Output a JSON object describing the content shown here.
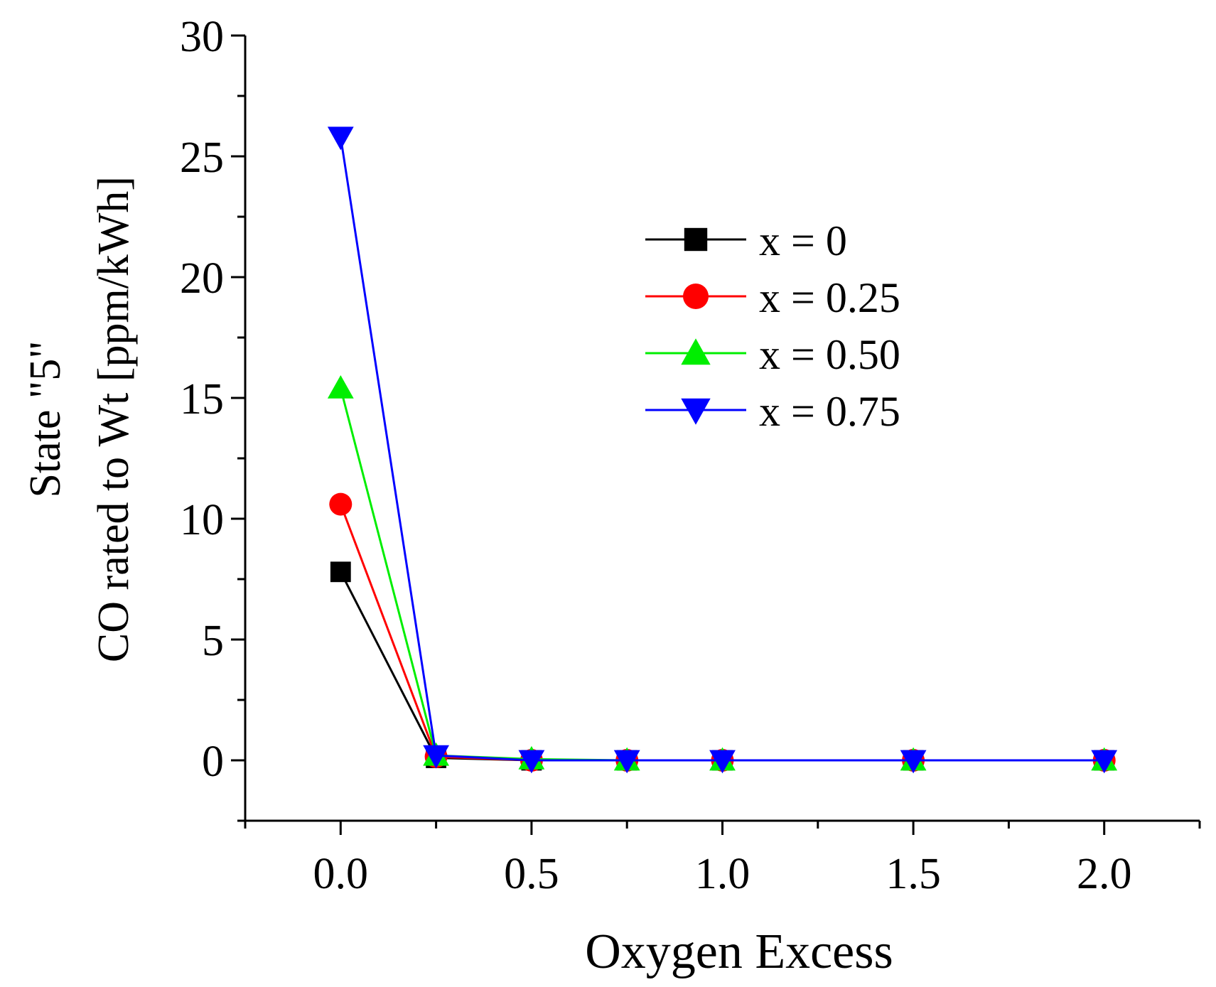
{
  "chart_data": {
    "type": "line",
    "title": "",
    "xlabel": "Oxygen Excess",
    "ylabel_line1": "State \"5\"",
    "ylabel_line2": "CO rated to Wt [ppm/kWh]",
    "xlim": [
      -0.25,
      2.25
    ],
    "ylim": [
      -2.5,
      30
    ],
    "x_ticks": [
      0.0,
      0.5,
      1.0,
      1.5,
      2.0
    ],
    "x_tick_labels": [
      "0.0",
      "0.5",
      "1.0",
      "1.5",
      "2.0"
    ],
    "x_minor_ticks": [
      -0.25,
      0.25,
      0.75,
      1.25,
      1.75,
      2.25
    ],
    "y_ticks": [
      0,
      5,
      10,
      15,
      20,
      25,
      30
    ],
    "y_tick_labels": [
      "0",
      "5",
      "10",
      "15",
      "20",
      "25",
      "30"
    ],
    "y_minor_ticks": [
      -2.5,
      2.5,
      7.5,
      12.5,
      17.5,
      22.5,
      27.5
    ],
    "x": [
      0.0,
      0.25,
      0.5,
      0.75,
      1.0,
      1.5,
      2.0
    ],
    "series": [
      {
        "name": "x = 0",
        "marker": "square",
        "color": "#000000",
        "values": [
          7.8,
          0.1,
          0.0,
          0.0,
          0.0,
          0.0,
          0.0
        ]
      },
      {
        "name": "x = 0.25",
        "marker": "circle",
        "color": "#ff0000",
        "values": [
          10.6,
          0.15,
          0.0,
          0.0,
          0.0,
          0.0,
          0.0
        ]
      },
      {
        "name": "x = 0.50",
        "marker": "triangle-up",
        "color": "#00ee00",
        "values": [
          15.4,
          0.2,
          0.05,
          0.0,
          0.0,
          0.0,
          0.0
        ]
      },
      {
        "name": "x = 0.75",
        "marker": "triangle-down",
        "color": "#0000ff",
        "values": [
          25.8,
          0.2,
          0.0,
          0.0,
          0.0,
          0.0,
          0.0
        ]
      }
    ],
    "legend_position": "top-right"
  }
}
